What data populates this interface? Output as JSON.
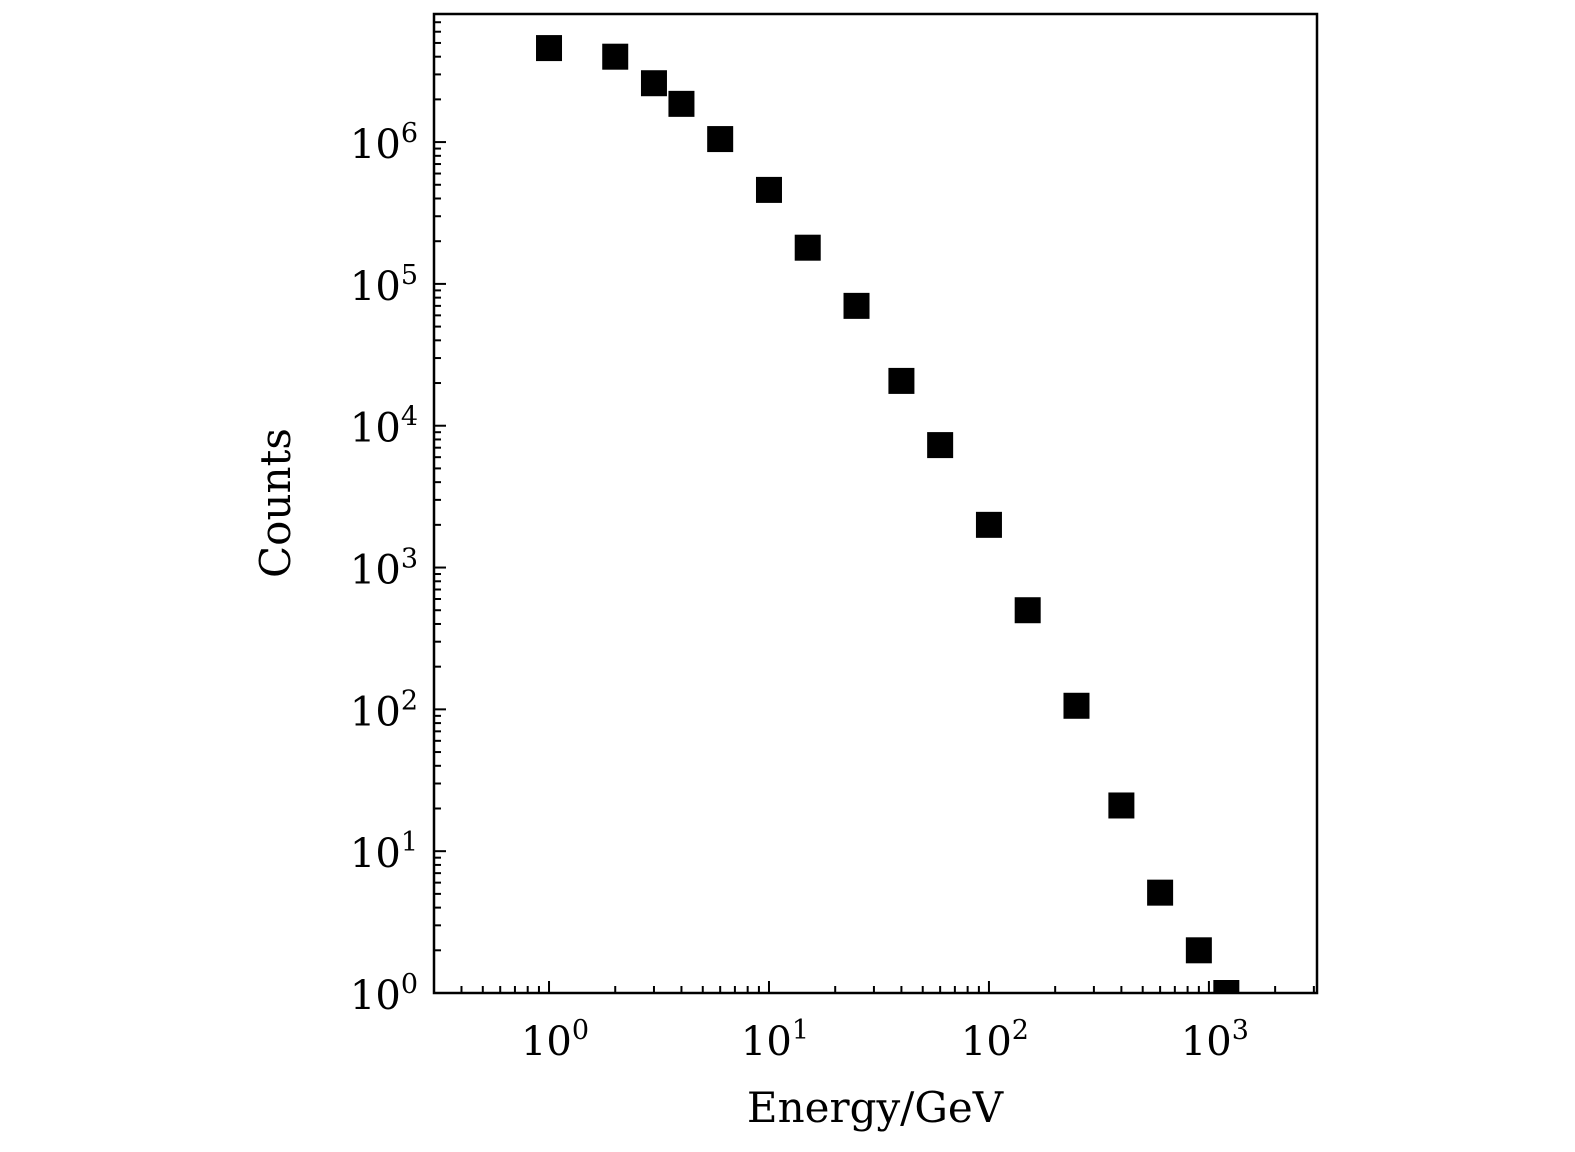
{
  "chart_data": {
    "type": "scatter",
    "title": "",
    "xlabel": "Energy/GeV",
    "ylabel": "Counts",
    "xscale": "log",
    "yscale": "log",
    "xlim": [
      0.3,
      3100
    ],
    "ylim": [
      1,
      8000000
    ],
    "grid": false,
    "marker": "filled-square",
    "marker_color": "#000000",
    "x_ticks": [
      {
        "base": "10",
        "exp": "0",
        "value": 1
      },
      {
        "base": "10",
        "exp": "1",
        "value": 10
      },
      {
        "base": "10",
        "exp": "2",
        "value": 100
      },
      {
        "base": "10",
        "exp": "3",
        "value": 1000
      }
    ],
    "y_ticks": [
      {
        "base": "10",
        "exp": "0",
        "value": 1
      },
      {
        "base": "10",
        "exp": "1",
        "value": 10
      },
      {
        "base": "10",
        "exp": "2",
        "value": 100
      },
      {
        "base": "10",
        "exp": "3",
        "value": 1000
      },
      {
        "base": "10",
        "exp": "4",
        "value": 10000
      },
      {
        "base": "10",
        "exp": "5",
        "value": 100000
      },
      {
        "base": "10",
        "exp": "6",
        "value": 1000000
      }
    ],
    "x": [
      1,
      2,
      3,
      4,
      6,
      10,
      15,
      25,
      40,
      60,
      100,
      150,
      250,
      400,
      600,
      900,
      1200
    ],
    "y": [
      4600000,
      4000000,
      2600000,
      1860000,
      1050000,
      460000,
      180000,
      70000,
      20700,
      7300,
      2000,
      500,
      106,
      21,
      5.1,
      2.0,
      1.0
    ]
  }
}
